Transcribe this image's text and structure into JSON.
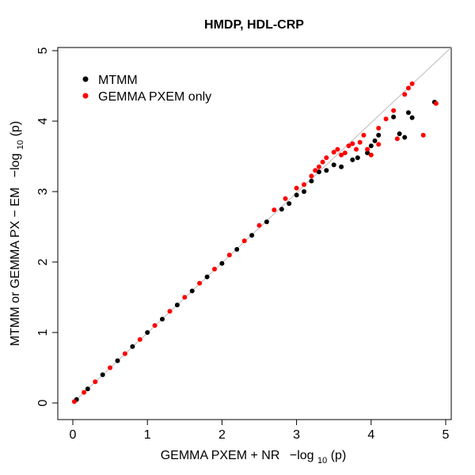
{
  "chart_data": {
    "type": "scatter",
    "title": "HMDP, HDL-CRP",
    "xlabel": {
      "text": "GEMMA PXEM + NR",
      "func": "−log",
      "sub": "10",
      "arg": "(p)"
    },
    "ylabel": {
      "text": "MTMM or GEMMA PX − EM",
      "func": "−log",
      "sub": "10",
      "arg": "(p)"
    },
    "xlim": [
      0,
      5
    ],
    "ylim": [
      0,
      5
    ],
    "x_ticks": [
      "0",
      "1",
      "2",
      "3",
      "4",
      "5"
    ],
    "y_ticks": [
      "0",
      "1",
      "2",
      "3",
      "4",
      "5"
    ],
    "grid": false,
    "legend_position": "top-left",
    "reference_line": "y = x",
    "series": [
      {
        "name": "MTMM",
        "color": "#000000",
        "points": [
          [
            0.05,
            0.05
          ],
          [
            0.2,
            0.2
          ],
          [
            0.4,
            0.4
          ],
          [
            0.6,
            0.6
          ],
          [
            0.8,
            0.8
          ],
          [
            1.0,
            1.0
          ],
          [
            1.2,
            1.19
          ],
          [
            1.4,
            1.39
          ],
          [
            1.6,
            1.59
          ],
          [
            1.8,
            1.79
          ],
          [
            2.0,
            1.98
          ],
          [
            2.2,
            2.18
          ],
          [
            2.4,
            2.38
          ],
          [
            2.6,
            2.57
          ],
          [
            2.8,
            2.75
          ],
          [
            2.9,
            2.83
          ],
          [
            3.0,
            2.95
          ],
          [
            3.1,
            3.0
          ],
          [
            3.2,
            3.15
          ],
          [
            3.3,
            3.28
          ],
          [
            3.4,
            3.3
          ],
          [
            3.5,
            3.38
          ],
          [
            3.6,
            3.35
          ],
          [
            3.75,
            3.45
          ],
          [
            3.82,
            3.48
          ],
          [
            3.95,
            3.55
          ],
          [
            4.0,
            3.65
          ],
          [
            4.05,
            3.72
          ],
          [
            4.1,
            3.8
          ],
          [
            4.3,
            4.06
          ],
          [
            4.38,
            3.82
          ],
          [
            4.45,
            3.77
          ],
          [
            4.5,
            4.12
          ],
          [
            4.55,
            4.05
          ],
          [
            4.85,
            4.27
          ]
        ]
      },
      {
        "name": "GEMMA PXEM only",
        "color": "#ff0000",
        "points": [
          [
            0.02,
            0.02
          ],
          [
            0.15,
            0.15
          ],
          [
            0.3,
            0.3
          ],
          [
            0.5,
            0.5
          ],
          [
            0.7,
            0.7
          ],
          [
            0.9,
            0.9
          ],
          [
            1.1,
            1.1
          ],
          [
            1.3,
            1.3
          ],
          [
            1.5,
            1.5
          ],
          [
            1.7,
            1.7
          ],
          [
            1.9,
            1.9
          ],
          [
            2.1,
            2.1
          ],
          [
            2.3,
            2.3
          ],
          [
            2.5,
            2.52
          ],
          [
            2.7,
            2.74
          ],
          [
            2.85,
            2.9
          ],
          [
            3.0,
            3.05
          ],
          [
            3.1,
            3.1
          ],
          [
            3.2,
            3.22
          ],
          [
            3.25,
            3.3
          ],
          [
            3.3,
            3.35
          ],
          [
            3.35,
            3.42
          ],
          [
            3.4,
            3.48
          ],
          [
            3.5,
            3.56
          ],
          [
            3.55,
            3.6
          ],
          [
            3.6,
            3.52
          ],
          [
            3.65,
            3.55
          ],
          [
            3.7,
            3.65
          ],
          [
            3.75,
            3.68
          ],
          [
            3.8,
            3.6
          ],
          [
            3.85,
            3.7
          ],
          [
            3.9,
            3.8
          ],
          [
            3.95,
            3.6
          ],
          [
            4.0,
            3.52
          ],
          [
            4.1,
            3.67
          ],
          [
            4.1,
            3.9
          ],
          [
            4.2,
            4.03
          ],
          [
            4.3,
            4.15
          ],
          [
            4.35,
            3.75
          ],
          [
            4.45,
            4.38
          ],
          [
            4.5,
            4.47
          ],
          [
            4.55,
            4.53
          ],
          [
            4.7,
            3.8
          ],
          [
            4.87,
            4.25
          ]
        ]
      }
    ]
  }
}
